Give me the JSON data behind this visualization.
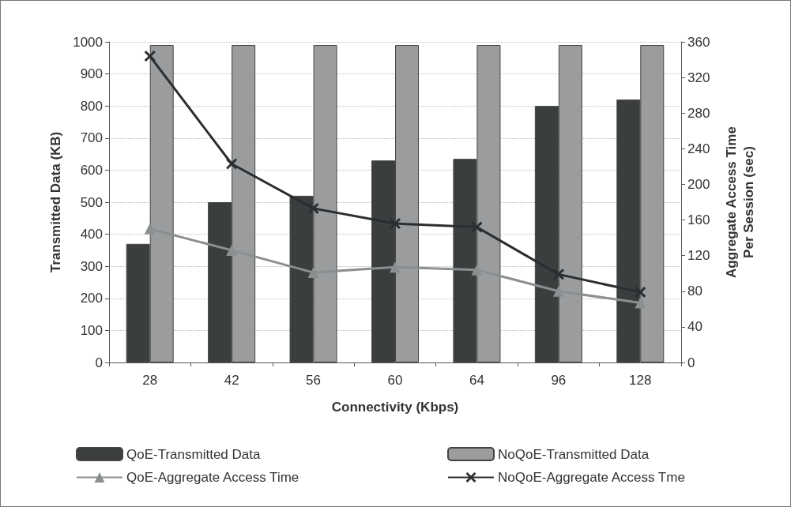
{
  "chart_data": {
    "type": "bar",
    "xlabel": "Connectivity (Kbps)",
    "ylabel": "Transmitted Data (KB)",
    "y2label": "Aggregate Access Time\nPer Session (sec)",
    "categories": [
      "28",
      "42",
      "56",
      "60",
      "64",
      "96",
      "128"
    ],
    "series": [
      {
        "name": "QoE-Transmitted Data",
        "color": "#3b3e3f",
        "values": [
          370,
          500,
          520,
          630,
          635,
          800,
          820
        ]
      },
      {
        "name": "NoQoE-Transmitted Data",
        "color": "#9a9c9e",
        "values": [
          990,
          990,
          990,
          990,
          990,
          990,
          990
        ]
      },
      {
        "name": "QoE-Aggregate Access Time",
        "type": "line",
        "axis": "y2",
        "marker": "triangle",
        "color": "#8a8f90",
        "values": [
          150,
          126,
          101,
          107,
          104,
          80,
          67
        ]
      },
      {
        "name": "NoQoE-Aggregate Access Tme",
        "type": "line",
        "axis": "y2",
        "marker": "cross",
        "color": "#2b2e30",
        "values": [
          344,
          223,
          173,
          156,
          152,
          99,
          79
        ]
      }
    ],
    "ylim": [
      0,
      1000
    ],
    "yticks": [
      0,
      100,
      200,
      300,
      400,
      500,
      600,
      700,
      800,
      900,
      1000
    ],
    "y2lim": [
      0,
      360
    ],
    "y2ticks": [
      0,
      40,
      80,
      120,
      160,
      200,
      240,
      280,
      320,
      360
    ],
    "grid": "y",
    "legend": "bottom"
  }
}
